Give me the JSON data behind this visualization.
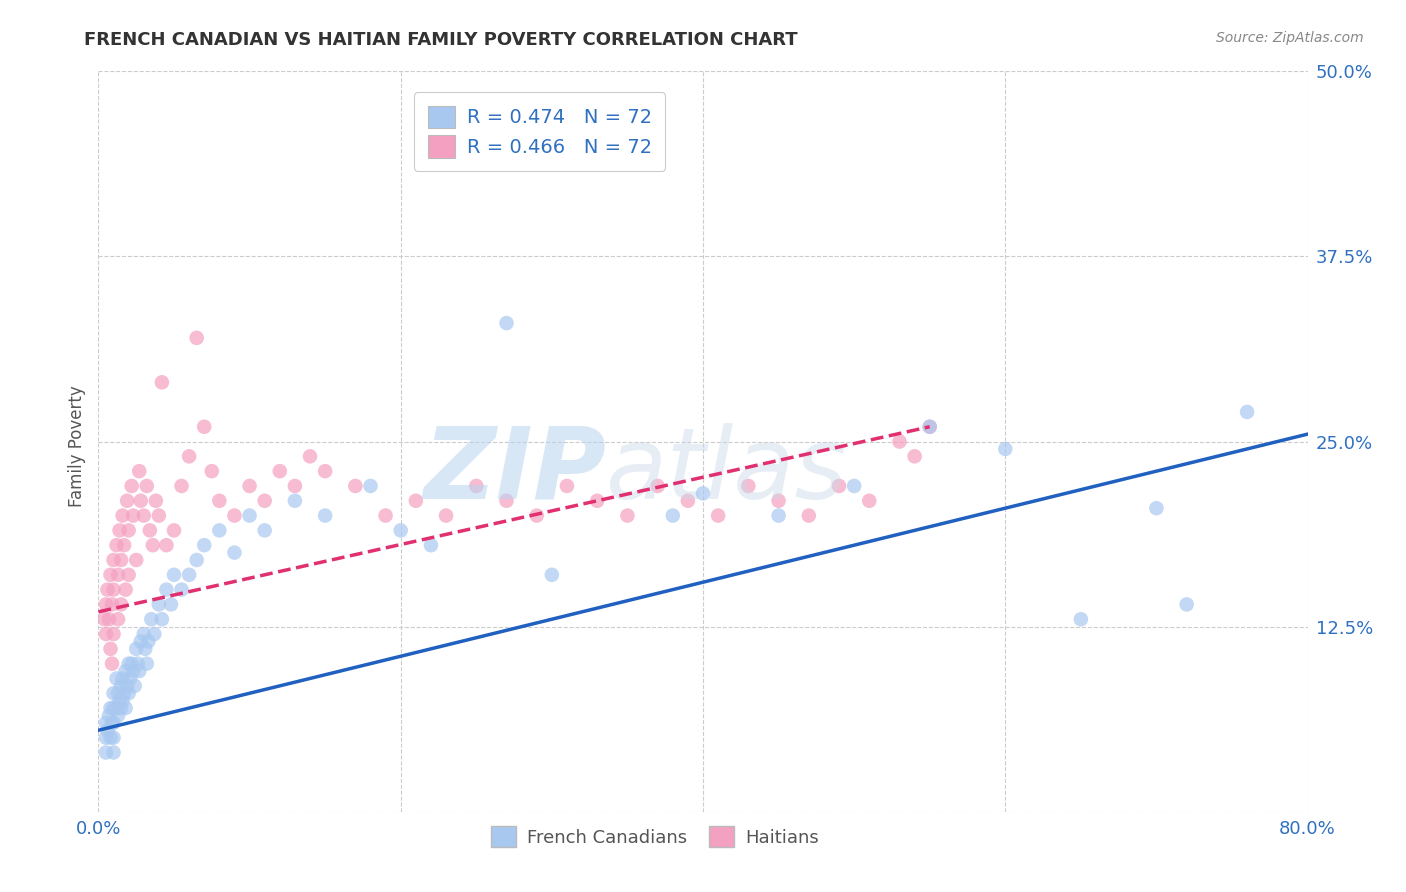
{
  "title": "FRENCH CANADIAN VS HAITIAN FAMILY POVERTY CORRELATION CHART",
  "source": "Source: ZipAtlas.com",
  "ylabel": "Family Poverty",
  "xlim": [
    0.0,
    0.8
  ],
  "ylim": [
    0.0,
    0.5
  ],
  "xticks": [
    0.0,
    0.2,
    0.4,
    0.6,
    0.8
  ],
  "yticks": [
    0.0,
    0.125,
    0.25,
    0.375,
    0.5
  ],
  "blue_color": "#a8c8f0",
  "pink_color": "#f4a0c0",
  "blue_line_color": "#2060c0",
  "pink_line_color": "#e03070",
  "blue_R": 0.474,
  "blue_N": 72,
  "pink_R": 0.466,
  "pink_N": 72,
  "legend_label_blue": "French Canadians",
  "legend_label_pink": "Haitians",
  "watermark_zip": "ZIP",
  "watermark_atlas": "atlas",
  "grid_color": "#cccccc",
  "background_color": "#ffffff",
  "blue_scatter_x": [
    0.005,
    0.005,
    0.005,
    0.006,
    0.007,
    0.008,
    0.008,
    0.009,
    0.01,
    0.01,
    0.01,
    0.01,
    0.01,
    0.012,
    0.012,
    0.013,
    0.013,
    0.014,
    0.015,
    0.015,
    0.016,
    0.016,
    0.017,
    0.018,
    0.018,
    0.019,
    0.02,
    0.02,
    0.021,
    0.022,
    0.023,
    0.024,
    0.025,
    0.026,
    0.027,
    0.028,
    0.03,
    0.031,
    0.032,
    0.033,
    0.035,
    0.037,
    0.04,
    0.042,
    0.045,
    0.048,
    0.05,
    0.055,
    0.06,
    0.065,
    0.07,
    0.08,
    0.09,
    0.1,
    0.11,
    0.13,
    0.15,
    0.18,
    0.2,
    0.22,
    0.27,
    0.3,
    0.38,
    0.4,
    0.45,
    0.5,
    0.55,
    0.6,
    0.65,
    0.7,
    0.72,
    0.76
  ],
  "blue_scatter_y": [
    0.05,
    0.06,
    0.04,
    0.055,
    0.065,
    0.07,
    0.05,
    0.06,
    0.08,
    0.07,
    0.06,
    0.05,
    0.04,
    0.09,
    0.07,
    0.08,
    0.065,
    0.075,
    0.085,
    0.07,
    0.09,
    0.075,
    0.08,
    0.095,
    0.07,
    0.085,
    0.1,
    0.08,
    0.09,
    0.1,
    0.095,
    0.085,
    0.11,
    0.1,
    0.095,
    0.115,
    0.12,
    0.11,
    0.1,
    0.115,
    0.13,
    0.12,
    0.14,
    0.13,
    0.15,
    0.14,
    0.16,
    0.15,
    0.16,
    0.17,
    0.18,
    0.19,
    0.175,
    0.2,
    0.19,
    0.21,
    0.2,
    0.22,
    0.19,
    0.18,
    0.33,
    0.16,
    0.2,
    0.215,
    0.2,
    0.22,
    0.26,
    0.245,
    0.13,
    0.205,
    0.14,
    0.27
  ],
  "pink_scatter_x": [
    0.004,
    0.005,
    0.005,
    0.006,
    0.007,
    0.008,
    0.008,
    0.009,
    0.009,
    0.01,
    0.01,
    0.01,
    0.012,
    0.013,
    0.013,
    0.014,
    0.015,
    0.015,
    0.016,
    0.017,
    0.018,
    0.019,
    0.02,
    0.02,
    0.022,
    0.023,
    0.025,
    0.027,
    0.028,
    0.03,
    0.032,
    0.034,
    0.036,
    0.038,
    0.04,
    0.042,
    0.045,
    0.05,
    0.055,
    0.06,
    0.065,
    0.07,
    0.075,
    0.08,
    0.09,
    0.1,
    0.11,
    0.12,
    0.13,
    0.14,
    0.15,
    0.17,
    0.19,
    0.21,
    0.23,
    0.25,
    0.27,
    0.29,
    0.31,
    0.33,
    0.35,
    0.37,
    0.39,
    0.41,
    0.43,
    0.45,
    0.47,
    0.49,
    0.51,
    0.53,
    0.54,
    0.55
  ],
  "pink_scatter_y": [
    0.13,
    0.14,
    0.12,
    0.15,
    0.13,
    0.16,
    0.11,
    0.14,
    0.1,
    0.17,
    0.15,
    0.12,
    0.18,
    0.16,
    0.13,
    0.19,
    0.17,
    0.14,
    0.2,
    0.18,
    0.15,
    0.21,
    0.19,
    0.16,
    0.22,
    0.2,
    0.17,
    0.23,
    0.21,
    0.2,
    0.22,
    0.19,
    0.18,
    0.21,
    0.2,
    0.29,
    0.18,
    0.19,
    0.22,
    0.24,
    0.32,
    0.26,
    0.23,
    0.21,
    0.2,
    0.22,
    0.21,
    0.23,
    0.22,
    0.24,
    0.23,
    0.22,
    0.2,
    0.21,
    0.2,
    0.22,
    0.21,
    0.2,
    0.22,
    0.21,
    0.2,
    0.22,
    0.21,
    0.2,
    0.22,
    0.21,
    0.2,
    0.22,
    0.21,
    0.25,
    0.24,
    0.26
  ],
  "blue_line_x": [
    0.0,
    0.8
  ],
  "blue_line_y": [
    0.055,
    0.255
  ],
  "pink_line_x": [
    0.0,
    0.55
  ],
  "pink_line_y": [
    0.135,
    0.26
  ]
}
